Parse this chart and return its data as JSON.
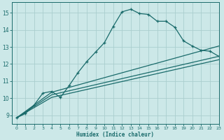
{
  "xlabel": "Humidex (Indice chaleur)",
  "bg_color": "#cce8e8",
  "grid_color": "#aacece",
  "line_color": "#1a6b6b",
  "xlim": [
    -0.5,
    23
  ],
  "ylim": [
    8.5,
    15.6
  ],
  "xticks": [
    0,
    1,
    2,
    3,
    4,
    5,
    6,
    7,
    8,
    9,
    10,
    11,
    12,
    13,
    14,
    15,
    16,
    17,
    18,
    19,
    20,
    21,
    22,
    23
  ],
  "yticks": [
    9,
    10,
    11,
    12,
    13,
    14,
    15
  ],
  "curve1_x": [
    0,
    1,
    2,
    3,
    4,
    5,
    6,
    7,
    8,
    9,
    10,
    11,
    12,
    13,
    14,
    15,
    16,
    17,
    18,
    19,
    20,
    21,
    22,
    23
  ],
  "curve1_y": [
    8.85,
    9.1,
    9.6,
    10.3,
    10.4,
    10.05,
    10.75,
    11.5,
    12.15,
    12.7,
    13.25,
    14.2,
    15.05,
    15.2,
    14.95,
    14.9,
    14.5,
    14.5,
    14.15,
    13.35,
    13.05,
    12.8,
    12.75,
    12.45
  ],
  "curve2_x": [
    0,
    4,
    23
  ],
  "curve2_y": [
    8.85,
    10.35,
    13.05
  ],
  "curve3_x": [
    0,
    4,
    23
  ],
  "curve3_y": [
    8.85,
    10.2,
    12.45
  ],
  "curve4_x": [
    0,
    4,
    23
  ],
  "curve4_y": [
    8.85,
    10.05,
    12.25
  ]
}
